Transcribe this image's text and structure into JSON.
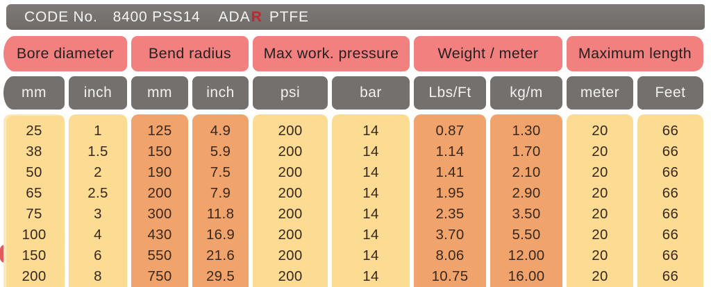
{
  "code_bar": {
    "label": "CODE No.",
    "code": "8400 PSS14",
    "brand": "ADA",
    "brand_mark": "R",
    "material": "PTFE"
  },
  "table": {
    "groups": [
      {
        "label": "Bore diameter"
      },
      {
        "label": "Bend radius"
      },
      {
        "label": "Max work. pressure"
      },
      {
        "label": "Weight / meter"
      },
      {
        "label": "Maximum length"
      }
    ],
    "units": [
      "mm",
      "inch",
      "mm",
      "inch",
      "psi",
      "bar",
      "Lbs/Ft",
      "kg/m",
      "meter",
      "Feet"
    ],
    "column_tint": [
      "yellow",
      "yellow",
      "orange",
      "orange",
      "yellow",
      "yellow",
      "orange",
      "orange",
      "yellow",
      "yellow"
    ],
    "rows": [
      [
        "25",
        "1",
        "125",
        "4.9",
        "200",
        "14",
        "0.87",
        "1.30",
        "20",
        "66"
      ],
      [
        "38",
        "1.5",
        "150",
        "5.9",
        "200",
        "14",
        "1.14",
        "1.70",
        "20",
        "66"
      ],
      [
        "50",
        "2",
        "190",
        "7.5",
        "200",
        "14",
        "1.41",
        "2.10",
        "20",
        "66"
      ],
      [
        "65",
        "2.5",
        "200",
        "7.9",
        "200",
        "14",
        "1.95",
        "2.90",
        "20",
        "66"
      ],
      [
        "75",
        "3",
        "300",
        "11.8",
        "200",
        "14",
        "2.35",
        "3.50",
        "20",
        "66"
      ],
      [
        "100",
        "4",
        "430",
        "16.9",
        "200",
        "14",
        "3.70",
        "5.50",
        "20",
        "66"
      ],
      [
        "150",
        "6",
        "550",
        "21.6",
        "200",
        "14",
        "8.06",
        "12.00",
        "20",
        "66"
      ],
      [
        "200",
        "8",
        "750",
        "29.5",
        "200",
        "14",
        "10.75",
        "16.00",
        "20",
        "66"
      ]
    ]
  },
  "chart_data": {
    "type": "table",
    "title": "CODE No. 8400 PSS14 ADAR PTFE",
    "column_groups": [
      "Bore diameter",
      "Bend radius",
      "Max work. pressure",
      "Weight / meter",
      "Maximum length"
    ],
    "columns": [
      "Bore diameter (mm)",
      "Bore diameter (inch)",
      "Bend radius (mm)",
      "Bend radius (inch)",
      "Max work. pressure (psi)",
      "Max work. pressure (bar)",
      "Weight/meter (Lbs/Ft)",
      "Weight/meter (kg/m)",
      "Maximum length (meter)",
      "Maximum length (Feet)"
    ],
    "rows": [
      [
        25,
        1,
        125,
        4.9,
        200,
        14,
        0.87,
        1.3,
        20,
        66
      ],
      [
        38,
        1.5,
        150,
        5.9,
        200,
        14,
        1.14,
        1.7,
        20,
        66
      ],
      [
        50,
        2,
        190,
        7.5,
        200,
        14,
        1.41,
        2.1,
        20,
        66
      ],
      [
        65,
        2.5,
        200,
        7.9,
        200,
        14,
        1.95,
        2.9,
        20,
        66
      ],
      [
        75,
        3,
        300,
        11.8,
        200,
        14,
        2.35,
        3.5,
        20,
        66
      ],
      [
        100,
        4,
        430,
        16.9,
        200,
        14,
        3.7,
        5.5,
        20,
        66
      ],
      [
        150,
        6,
        550,
        21.6,
        200,
        14,
        8.06,
        12.0,
        20,
        66
      ],
      [
        200,
        8,
        750,
        29.5,
        200,
        14,
        10.75,
        16.0,
        20,
        66
      ]
    ]
  },
  "colors": {
    "header_pink": "#F2807F",
    "bar_gray": "#74706E",
    "band_yellow": "#FBDC92",
    "band_orange": "#F0A36B",
    "text_dark": "#38271B",
    "logo_red": "#C1272D"
  }
}
